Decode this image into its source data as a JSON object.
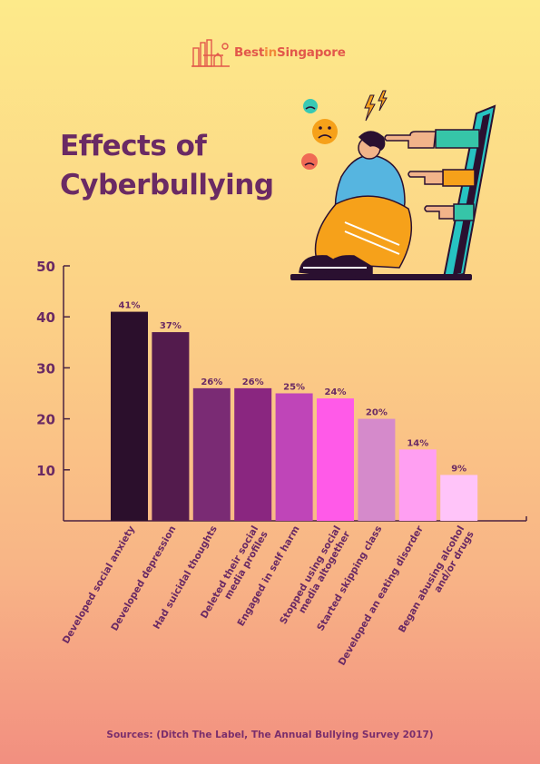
{
  "logo": {
    "text_part1": "Best",
    "text_part2": "in",
    "text_part3": "Singapore"
  },
  "title": {
    "line1": "Effects of",
    "line2": "Cyberbullying"
  },
  "source": "Sources: (Ditch The Label, The Annual Bullying Survey 2017)",
  "colors": {
    "axis": "#4a2340",
    "label": "#6a2a64",
    "tick": "#6a2a64"
  },
  "chart_data": {
    "type": "bar",
    "categories": [
      "Developed social anxiety",
      "Developed depression",
      "Had suicidal thoughts",
      "Deleted their social media profiles",
      "Engaged in self harm",
      "Stopped using social media altogether",
      "Started skipping class",
      "Developed an eating disorder",
      "Began abusing alcohol and/or drugs"
    ],
    "category_lines": [
      [
        "Developed social anxiety"
      ],
      [
        "Developed depression"
      ],
      [
        "Had suicidal thoughts"
      ],
      [
        "Deleted their social",
        "media profiles"
      ],
      [
        "Engaged in self harm"
      ],
      [
        "Stopped using social",
        "media altogether"
      ],
      [
        "Started skipping class"
      ],
      [
        "Developed an eating disorder"
      ],
      [
        "Began abusing alcohol",
        "and/or drugs"
      ]
    ],
    "values": [
      41,
      37,
      26,
      26,
      25,
      24,
      20,
      14,
      9
    ],
    "value_labels": [
      "41%",
      "37%",
      "26%",
      "26%",
      "25%",
      "24%",
      "20%",
      "14%",
      "9%"
    ],
    "bar_colors": [
      "#2b0f2c",
      "#531b4d",
      "#7a2b74",
      "#8a2680",
      "#bf45b8",
      "#ff5ae8",
      "#d58acb",
      "#ff9ff2",
      "#ffc4f9"
    ],
    "yticks": [
      10,
      20,
      30,
      40,
      50
    ],
    "ylim": [
      0,
      50
    ],
    "grid": false,
    "title": "",
    "xlabel": "",
    "ylabel": ""
  }
}
